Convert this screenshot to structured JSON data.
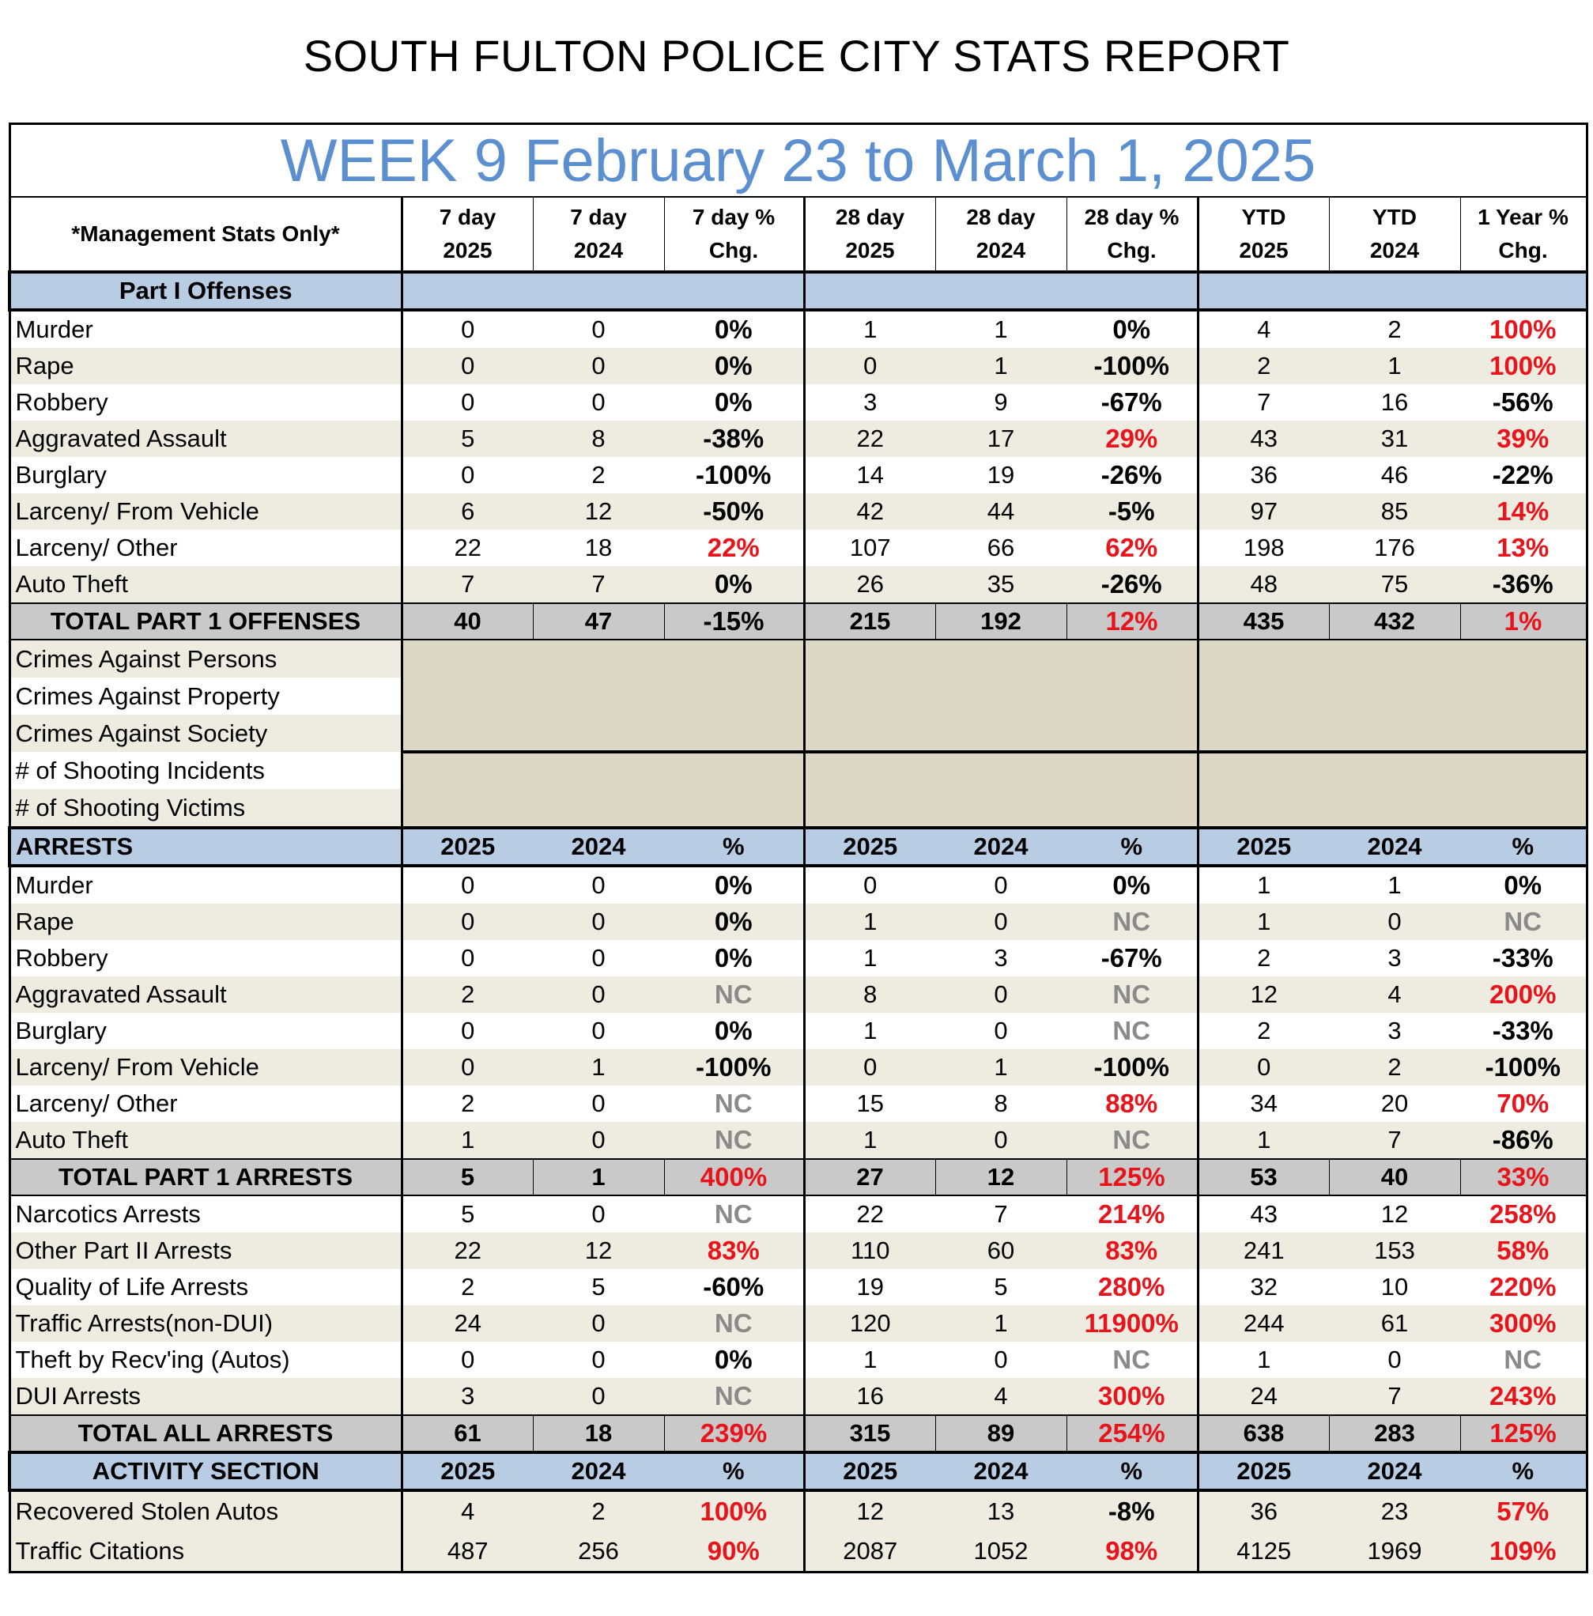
{
  "title": "SOUTH FULTON POLICE CITY STATS REPORT",
  "week_label": "WEEK 9 February 23 to March 1, 2025",
  "header": {
    "mgmt": "*Management Stats Only*",
    "cols": [
      [
        "7 day",
        "2025"
      ],
      [
        "7 day",
        "2024"
      ],
      [
        "7 day %",
        "Chg."
      ],
      [
        "28 day",
        "2025"
      ],
      [
        "28 day",
        "2024"
      ],
      [
        "28 day %",
        "Chg."
      ],
      [
        "YTD",
        "2025"
      ],
      [
        "YTD",
        "2024"
      ],
      [
        "1 Year %",
        "Chg."
      ]
    ]
  },
  "offenses": {
    "section_label": "Part I Offenses",
    "rows": [
      {
        "label": "Murder",
        "v": [
          "0",
          "0",
          "0%",
          "1",
          "1",
          "0%",
          "4",
          "2",
          "100%"
        ],
        "c": [
          "black",
          "black",
          "red"
        ]
      },
      {
        "label": "Rape",
        "v": [
          "0",
          "0",
          "0%",
          "0",
          "1",
          "-100%",
          "2",
          "1",
          "100%"
        ],
        "c": [
          "black",
          "black",
          "red"
        ]
      },
      {
        "label": "Robbery",
        "v": [
          "0",
          "0",
          "0%",
          "3",
          "9",
          "-67%",
          "7",
          "16",
          "-56%"
        ],
        "c": [
          "black",
          "black",
          "black"
        ]
      },
      {
        "label": "Aggravated Assault",
        "v": [
          "5",
          "8",
          "-38%",
          "22",
          "17",
          "29%",
          "43",
          "31",
          "39%"
        ],
        "c": [
          "black",
          "red",
          "red"
        ]
      },
      {
        "label": "Burglary",
        "v": [
          "0",
          "2",
          "-100%",
          "14",
          "19",
          "-26%",
          "36",
          "46",
          "-22%"
        ],
        "c": [
          "black",
          "black",
          "black"
        ]
      },
      {
        "label": "Larceny/ From Vehicle",
        "v": [
          "6",
          "12",
          "-50%",
          "42",
          "44",
          "-5%",
          "97",
          "85",
          "14%"
        ],
        "c": [
          "black",
          "black",
          "red"
        ]
      },
      {
        "label": "Larceny/ Other",
        "v": [
          "22",
          "18",
          "22%",
          "107",
          "66",
          "62%",
          "198",
          "176",
          "13%"
        ],
        "c": [
          "red",
          "red",
          "red"
        ]
      },
      {
        "label": "Auto Theft",
        "v": [
          "7",
          "7",
          "0%",
          "26",
          "35",
          "-26%",
          "48",
          "75",
          "-36%"
        ],
        "c": [
          "black",
          "black",
          "black"
        ]
      }
    ],
    "total": {
      "label": "TOTAL PART 1 OFFENSES",
      "v": [
        "40",
        "47",
        "-15%",
        "215",
        "192",
        "12%",
        "435",
        "432",
        "1%"
      ],
      "c": [
        "black",
        "red",
        "red"
      ]
    }
  },
  "crime_categories": [
    "Crimes Against Persons",
    "Crimes Against Property",
    "Crimes Against Society"
  ],
  "shooting_categories": [
    "# of Shooting Incidents",
    "# of Shooting Victims"
  ],
  "arrests": {
    "section_label": "ARRESTS",
    "heads": [
      "2025",
      "2024",
      "%",
      "2025",
      "2024",
      "%",
      "2025",
      "2024",
      "%"
    ],
    "rows": [
      {
        "label": "Murder",
        "v": [
          "0",
          "0",
          "0%",
          "0",
          "0",
          "0%",
          "1",
          "1",
          "0%"
        ],
        "c": [
          "black",
          "black",
          "black"
        ]
      },
      {
        "label": "Rape",
        "v": [
          "0",
          "0",
          "0%",
          "1",
          "0",
          "NC",
          "1",
          "0",
          "NC"
        ],
        "c": [
          "black",
          "gray",
          "gray"
        ]
      },
      {
        "label": "Robbery",
        "v": [
          "0",
          "0",
          "0%",
          "1",
          "3",
          "-67%",
          "2",
          "3",
          "-33%"
        ],
        "c": [
          "black",
          "black",
          "black"
        ]
      },
      {
        "label": "Aggravated Assault",
        "v": [
          "2",
          "0",
          "NC",
          "8",
          "0",
          "NC",
          "12",
          "4",
          "200%"
        ],
        "c": [
          "gray",
          "gray",
          "red"
        ]
      },
      {
        "label": "Burglary",
        "v": [
          "0",
          "0",
          "0%",
          "1",
          "0",
          "NC",
          "2",
          "3",
          "-33%"
        ],
        "c": [
          "black",
          "gray",
          "black"
        ]
      },
      {
        "label": "Larceny/ From Vehicle",
        "v": [
          "0",
          "1",
          "-100%",
          "0",
          "1",
          "-100%",
          "0",
          "2",
          "-100%"
        ],
        "c": [
          "black",
          "black",
          "black"
        ]
      },
      {
        "label": "Larceny/ Other",
        "v": [
          "2",
          "0",
          "NC",
          "15",
          "8",
          "88%",
          "34",
          "20",
          "70%"
        ],
        "c": [
          "gray",
          "red",
          "red"
        ]
      },
      {
        "label": "Auto Theft",
        "v": [
          "1",
          "0",
          "NC",
          "1",
          "0",
          "NC",
          "1",
          "7",
          "-86%"
        ],
        "c": [
          "gray",
          "gray",
          "black"
        ]
      }
    ],
    "total": {
      "label": "TOTAL PART 1 ARRESTS",
      "v": [
        "5",
        "1",
        "400%",
        "27",
        "12",
        "125%",
        "53",
        "40",
        "33%"
      ],
      "c": [
        "red",
        "red",
        "red"
      ]
    },
    "other_rows": [
      {
        "label": "Narcotics Arrests",
        "v": [
          "5",
          "0",
          "NC",
          "22",
          "7",
          "214%",
          "43",
          "12",
          "258%"
        ],
        "c": [
          "gray",
          "red",
          "red"
        ]
      },
      {
        "label": "Other Part II Arrests",
        "v": [
          "22",
          "12",
          "83%",
          "110",
          "60",
          "83%",
          "241",
          "153",
          "58%"
        ],
        "c": [
          "red",
          "red",
          "red"
        ]
      },
      {
        "label": "Quality of Life Arrests",
        "v": [
          "2",
          "5",
          "-60%",
          "19",
          "5",
          "280%",
          "32",
          "10",
          "220%"
        ],
        "c": [
          "black",
          "red",
          "red"
        ]
      },
      {
        "label": "Traffic Arrests(non-DUI)",
        "v": [
          "24",
          "0",
          "NC",
          "120",
          "1",
          "11900%",
          "244",
          "61",
          "300%"
        ],
        "c": [
          "gray",
          "red",
          "red"
        ]
      },
      {
        "label": "Theft by Recv'ing (Autos)",
        "v": [
          "0",
          "0",
          "0%",
          "1",
          "0",
          "NC",
          "1",
          "0",
          "NC"
        ],
        "c": [
          "black",
          "gray",
          "gray"
        ]
      },
      {
        "label": "DUI Arrests",
        "v": [
          "3",
          "0",
          "NC",
          "16",
          "4",
          "300%",
          "24",
          "7",
          "243%"
        ],
        "c": [
          "gray",
          "red",
          "red"
        ]
      }
    ],
    "grand_total": {
      "label": "TOTAL ALL ARRESTS",
      "v": [
        "61",
        "18",
        "239%",
        "315",
        "89",
        "254%",
        "638",
        "283",
        "125%"
      ],
      "c": [
        "red",
        "red",
        "red"
      ]
    }
  },
  "activity": {
    "section_label": "ACTIVITY SECTION",
    "heads": [
      "2025",
      "2024",
      "%",
      "2025",
      "2024",
      "%",
      "2025",
      "2024",
      "%"
    ],
    "rows": [
      {
        "label": "Recovered Stolen Autos",
        "v": [
          "4",
          "2",
          "100%",
          "12",
          "13",
          "-8%",
          "36",
          "23",
          "57%"
        ],
        "c": [
          "red",
          "black",
          "red"
        ]
      },
      {
        "label": "Traffic Citations",
        "v": [
          "487",
          "256",
          "90%",
          "2087",
          "1052",
          "98%",
          "4125",
          "1969",
          "109%"
        ],
        "c": [
          "red",
          "red",
          "red"
        ]
      }
    ]
  }
}
